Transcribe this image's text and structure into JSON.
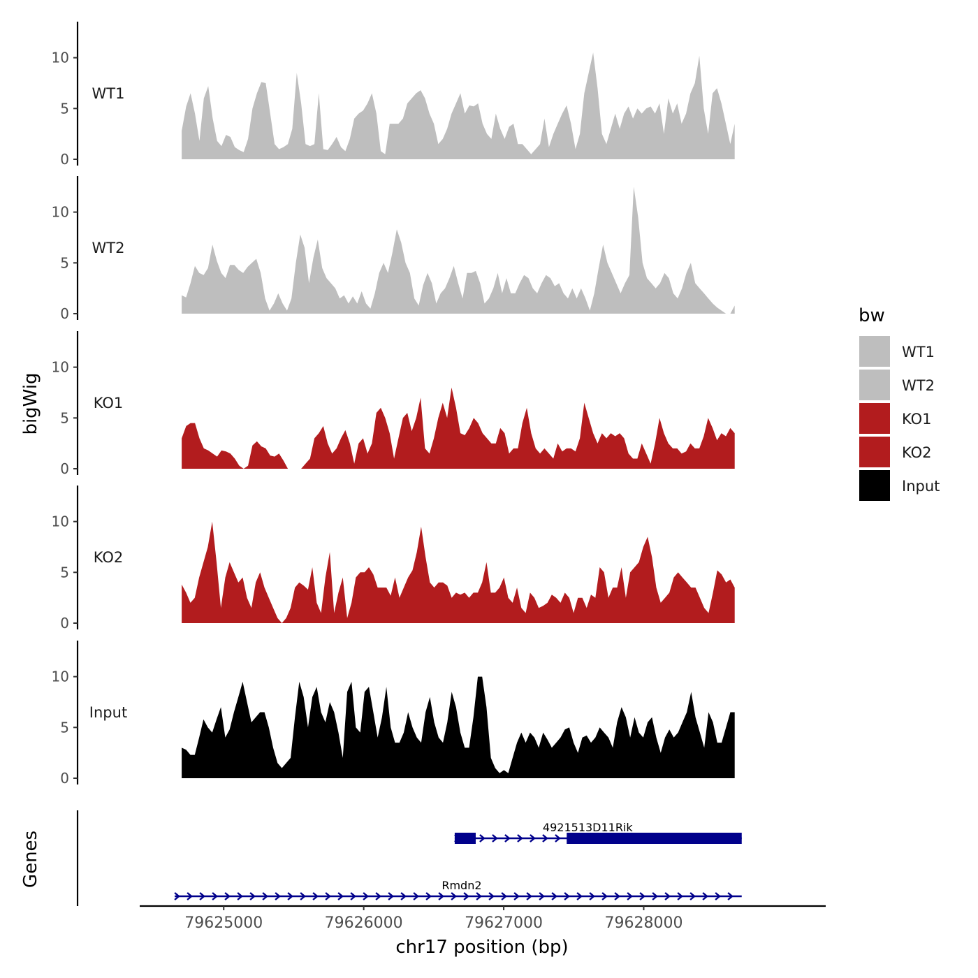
{
  "chart_data": {
    "type": "area",
    "ylabel": "bigWig",
    "gene_panel_label": "Genes",
    "xlabel": "chr17 position (bp)",
    "xlim": [
      79624400,
      79629300
    ],
    "x_ticks": [
      79625000,
      79626000,
      79627000,
      79628000
    ],
    "x_tick_labels": [
      "79625000",
      "79626000",
      "79627000",
      "79628000"
    ],
    "ylim": [
      0,
      13
    ],
    "y_ticks": [
      0,
      5,
      10
    ],
    "y_tick_labels": [
      "0",
      "5",
      "10"
    ],
    "legend_title": "bw",
    "series": [
      {
        "name": "WT1",
        "color": "#bebebe",
        "x_start": 79624700,
        "x_end": 79628650,
        "values": [
          2.8,
          5.2,
          6.5,
          4.5,
          1.8,
          6.0,
          7.2,
          4.0,
          1.8,
          1.3,
          2.4,
          2.2,
          1.2,
          0.9,
          0.7,
          2.0,
          5.0,
          6.5,
          7.6,
          7.5,
          4.5,
          1.5,
          1.0,
          1.2,
          1.5,
          3.0,
          8.5,
          5.5,
          1.5,
          1.3,
          1.5,
          6.5,
          1.0,
          0.9,
          1.5,
          2.2,
          1.2,
          0.8,
          2.0,
          4.0,
          4.5,
          4.8,
          5.5,
          6.5,
          4.5,
          0.8,
          0.5,
          3.5,
          3.5,
          3.5,
          4.0,
          5.5,
          6.0,
          6.5,
          6.8,
          6.0,
          4.5,
          3.5,
          1.5,
          2.0,
          3.0,
          4.5,
          5.5,
          6.5,
          4.5,
          5.3,
          5.2,
          5.5,
          3.5,
          2.5,
          2.0,
          4.5,
          3.0,
          2.0,
          3.2,
          3.5,
          1.5,
          1.5,
          1.0,
          0.5,
          1.0,
          1.5,
          4.0,
          1.2,
          2.5,
          3.5,
          4.5,
          5.3,
          3.5,
          1.0,
          2.5,
          6.5,
          8.5,
          10.5,
          7.0,
          2.5,
          1.5,
          3.0,
          4.5,
          3.0,
          4.5,
          5.2,
          4.0,
          5.0,
          4.5,
          5.0,
          5.2,
          4.5,
          5.5,
          2.5,
          6.0,
          4.5,
          5.5,
          3.5,
          4.5,
          6.5,
          7.5,
          10.2,
          5.0,
          2.5,
          6.5,
          7.0,
          5.5,
          3.5,
          1.5,
          3.5
        ]
      },
      {
        "name": "WT2",
        "color": "#bebebe",
        "x_start": 79624700,
        "x_end": 79628650,
        "values": [
          1.8,
          1.6,
          3.0,
          4.7,
          4.0,
          3.8,
          4.5,
          6.8,
          5.2,
          4.0,
          3.5,
          4.8,
          4.8,
          4.3,
          4.0,
          4.6,
          5.0,
          5.4,
          4.0,
          1.5,
          0.3,
          1.0,
          2.0,
          1.0,
          0.3,
          1.5,
          5.0,
          7.8,
          6.5,
          3.0,
          5.5,
          7.3,
          4.5,
          3.5,
          3.0,
          2.5,
          1.5,
          1.8,
          1.0,
          1.7,
          1.0,
          2.2,
          1.0,
          0.5,
          2.0,
          4.0,
          5.0,
          4.0,
          6.0,
          8.3,
          7.0,
          5.0,
          4.0,
          1.5,
          0.8,
          2.8,
          4.0,
          3.0,
          1.0,
          2.0,
          2.5,
          3.5,
          4.7,
          3.0,
          1.5,
          4.0,
          4.0,
          4.2,
          3.0,
          1.0,
          1.5,
          2.5,
          4.0,
          2.0,
          3.5,
          2.0,
          2.0,
          3.0,
          3.8,
          3.5,
          2.5,
          2.0,
          3.0,
          3.8,
          3.5,
          2.7,
          3.0,
          2.0,
          1.5,
          2.5,
          1.5,
          2.5,
          1.5,
          0.3,
          2.0,
          4.5,
          6.8,
          5.0,
          4.0,
          3.0,
          2.0,
          3.0,
          3.8,
          12.5,
          9.5,
          5.0,
          3.5,
          3.0,
          2.5,
          3.0,
          4.0,
          3.5,
          2.0,
          1.5,
          2.5,
          4.0,
          5.0,
          3.0,
          2.5,
          2.0,
          1.5,
          1.0,
          0.6,
          0.3,
          0.0,
          0.0,
          0.8
        ]
      },
      {
        "name": "KO1",
        "color": "#b21c1e",
        "x_start": 79624700,
        "x_end": 79628650,
        "values": [
          3.0,
          4.2,
          4.5,
          4.5,
          3.0,
          2.0,
          1.8,
          1.5,
          1.2,
          1.8,
          1.7,
          1.5,
          1.0,
          0.3,
          0.0,
          0.3,
          2.3,
          2.7,
          2.2,
          2.0,
          1.3,
          1.2,
          1.5,
          0.8,
          0.0,
          0.0,
          0.0,
          0.0,
          0.5,
          1.0,
          3.0,
          3.5,
          4.2,
          2.5,
          1.5,
          2.0,
          3.0,
          3.8,
          2.5,
          0.5,
          2.5,
          3.0,
          1.5,
          2.5,
          5.5,
          6.0,
          5.0,
          3.5,
          1.0,
          3.0,
          5.0,
          5.5,
          3.7,
          5.0,
          7.0,
          2.0,
          1.5,
          3.0,
          5.0,
          6.5,
          5.0,
          8.0,
          6.0,
          3.5,
          3.3,
          4.0,
          5.0,
          4.5,
          3.5,
          3.0,
          2.5,
          2.5,
          4.0,
          3.5,
          1.5,
          2.0,
          2.0,
          4.5,
          6.0,
          3.5,
          2.0,
          1.5,
          2.0,
          1.5,
          1.0,
          2.5,
          1.7,
          2.0,
          2.0,
          1.7,
          3.0,
          6.5,
          5.0,
          3.5,
          2.5,
          3.5,
          3.0,
          3.5,
          3.2,
          3.5,
          3.0,
          1.5,
          1.0,
          1.0,
          2.5,
          1.5,
          0.5,
          2.5,
          5.0,
          3.5,
          2.5,
          2.0,
          2.0,
          1.5,
          1.7,
          2.5,
          2.0,
          2.0,
          3.2,
          5.0,
          4.0,
          2.8,
          3.5,
          3.2,
          4.0,
          3.5
        ]
      },
      {
        "name": "KO2",
        "color": "#b21c1e",
        "x_start": 79624700,
        "x_end": 79628650,
        "values": [
          3.8,
          3.0,
          2.0,
          2.5,
          4.5,
          6.0,
          7.5,
          10.0,
          6.0,
          1.5,
          4.5,
          6.0,
          5.0,
          4.0,
          4.5,
          2.5,
          1.5,
          4.0,
          5.0,
          3.5,
          2.5,
          1.5,
          0.5,
          0.0,
          0.5,
          1.5,
          3.5,
          4.0,
          3.7,
          3.3,
          5.5,
          2.0,
          1.0,
          4.5,
          7.0,
          1.0,
          3.0,
          4.5,
          0.5,
          2.0,
          4.5,
          5.0,
          5.0,
          5.5,
          4.8,
          3.5,
          3.5,
          3.5,
          2.7,
          4.5,
          2.5,
          3.5,
          4.5,
          5.2,
          7.0,
          9.5,
          6.5,
          4.0,
          3.5,
          4.0,
          4.0,
          3.7,
          2.5,
          3.0,
          2.8,
          3.0,
          2.5,
          3.0,
          3.0,
          4.0,
          6.0,
          3.0,
          3.0,
          3.5,
          4.5,
          2.5,
          2.0,
          3.5,
          1.5,
          1.0,
          3.0,
          2.5,
          1.5,
          1.7,
          2.0,
          2.8,
          2.5,
          2.0,
          3.0,
          2.5,
          1.0,
          2.5,
          2.5,
          1.5,
          2.8,
          2.5,
          5.5,
          5.0,
          2.5,
          3.5,
          3.5,
          5.5,
          2.5,
          5.0,
          5.5,
          6.0,
          7.5,
          8.5,
          6.5,
          3.5,
          2.0,
          2.5,
          3.0,
          4.5,
          5.0,
          4.5,
          4.0,
          3.5,
          3.5,
          2.5,
          1.5,
          1.0,
          3.0,
          5.2,
          4.8,
          4.0,
          4.3,
          3.5
        ]
      },
      {
        "name": "Input",
        "color": "#000000",
        "x_start": 79624700,
        "x_end": 79628650,
        "values": [
          3.0,
          2.8,
          2.3,
          2.3,
          4.0,
          5.8,
          5.0,
          4.5,
          5.8,
          7.0,
          4.0,
          4.8,
          6.5,
          8.0,
          9.5,
          7.5,
          5.5,
          6.0,
          6.5,
          6.5,
          5.0,
          3.0,
          1.5,
          1.0,
          1.5,
          2.0,
          6.0,
          9.5,
          8.0,
          5.0,
          8.0,
          9.0,
          6.5,
          5.5,
          7.5,
          6.5,
          4.5,
          2.0,
          8.5,
          9.5,
          5.0,
          4.5,
          8.5,
          9.0,
          6.5,
          4.0,
          6.0,
          9.0,
          5.0,
          3.5,
          3.5,
          4.5,
          6.5,
          5.0,
          4.0,
          3.5,
          6.5,
          8.0,
          5.5,
          4.0,
          3.5,
          5.5,
          8.5,
          7.0,
          4.5,
          3.0,
          3.0,
          6.0,
          10.0,
          10.0,
          7.0,
          2.0,
          1.0,
          0.5,
          0.8,
          0.5,
          2.0,
          3.5,
          4.5,
          3.5,
          4.5,
          4.0,
          3.0,
          4.5,
          3.8,
          3.0,
          3.5,
          4.0,
          4.8,
          5.0,
          3.5,
          2.5,
          4.0,
          4.2,
          3.5,
          4.0,
          5.0,
          4.5,
          4.0,
          3.0,
          5.5,
          7.0,
          6.0,
          4.0,
          6.0,
          4.5,
          4.0,
          5.5,
          6.0,
          4.0,
          2.5,
          4.0,
          4.8,
          4.0,
          4.5,
          5.5,
          6.5,
          8.5,
          6.0,
          4.5,
          3.0,
          6.5,
          5.5,
          3.5,
          3.5,
          5.0,
          6.5,
          6.5
        ]
      }
    ],
    "genes": [
      {
        "name": "4921513D11Rik",
        "start": 79626650,
        "end": 79628700,
        "strand": "+",
        "row": 1,
        "exons": [
          {
            "start": 79626650,
            "end": 79626800
          },
          {
            "start": 79627450,
            "end": 79628700
          }
        ],
        "color": "#00008b"
      },
      {
        "name": "Rmdn2",
        "start": 79624650,
        "end": 79628700,
        "strand": "+",
        "row": 2,
        "exons": [],
        "color": "#00008b"
      }
    ]
  }
}
